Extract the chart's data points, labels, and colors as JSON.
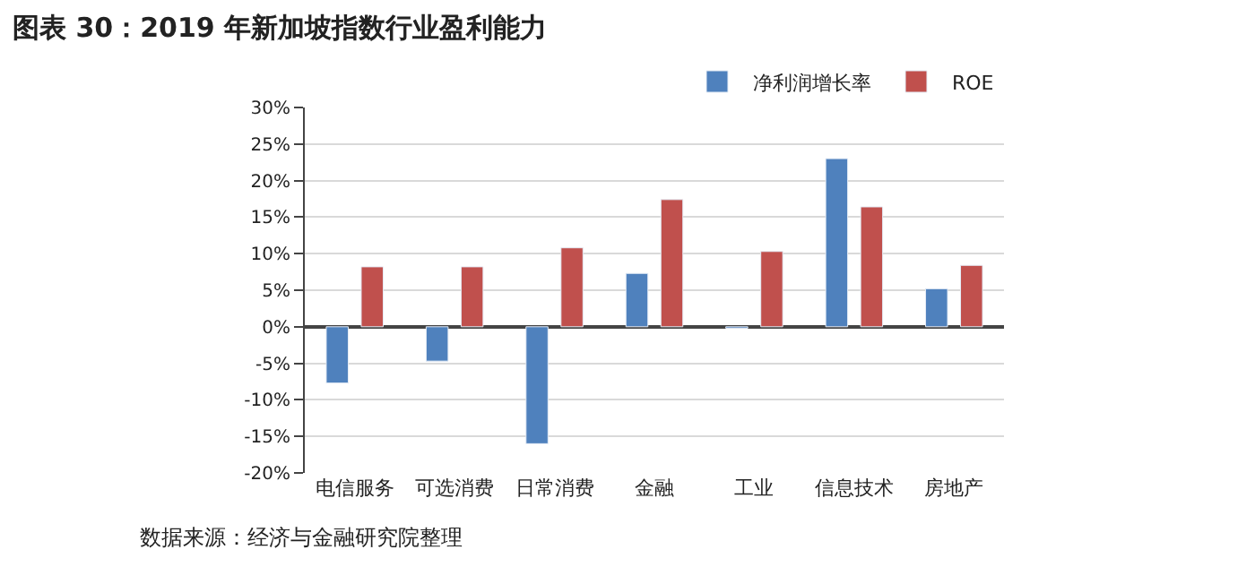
{
  "chart_data": {
    "type": "bar",
    "title": "图表 30：2019 年新加坡指数行业盈利能力",
    "categories": [
      "电信服务",
      "可选消费",
      "日常消费",
      "金融",
      "工业",
      "信息技术",
      "房地产"
    ],
    "series": [
      {
        "name": "净利润增长率",
        "color": "#4f81bd",
        "values": [
          -7.7,
          -4.7,
          -16,
          7.3,
          -0.2,
          23,
          5.2
        ]
      },
      {
        "name": "ROE",
        "color": "#c0504d",
        "values": [
          8.2,
          8.2,
          10.8,
          17.4,
          10.3,
          16.4,
          8.4
        ]
      }
    ],
    "ylim": [
      -20,
      30
    ],
    "yticks": [
      {
        "value": -20,
        "label": "-20%"
      },
      {
        "value": -15,
        "label": "-15%"
      },
      {
        "value": -10,
        "label": "-10%"
      },
      {
        "value": -5,
        "label": "-5%"
      },
      {
        "value": 0,
        "label": "0%"
      },
      {
        "value": 5,
        "label": "5%"
      },
      {
        "value": 10,
        "label": "10%"
      },
      {
        "value": 15,
        "label": "15%"
      },
      {
        "value": 20,
        "label": "20%"
      },
      {
        "value": 25,
        "label": "25%"
      },
      {
        "value": 30,
        "label": "30%"
      }
    ],
    "grid": "y",
    "legend": "top right",
    "annotations": [
      "数据来源：经济与金融研究院整理"
    ]
  }
}
